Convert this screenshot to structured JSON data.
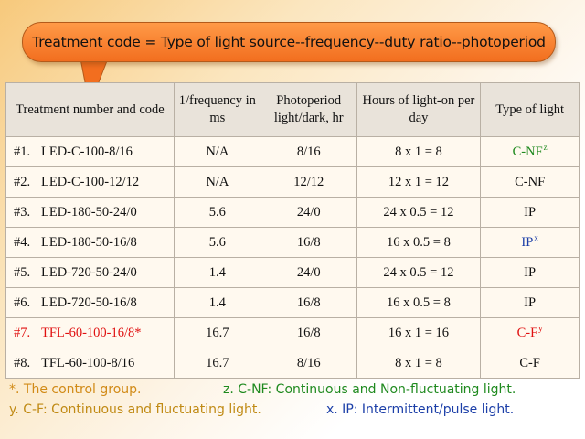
{
  "callout": {
    "text": "Treatment code = Type of light source--frequency--duty ratio--photoperiod"
  },
  "table": {
    "headers": [
      "Treatment number and code",
      "1/frequency in ms",
      "Photoperiod light/dark, hr",
      "Hours of light-on per day",
      "Type of light"
    ],
    "rows": [
      {
        "num": "#1.",
        "code": "LED-C-100-8/16",
        "freq": "N/A",
        "photo": "8/16",
        "hours": "8 x 1 = 8",
        "type": "C-NF",
        "sup": "z"
      },
      {
        "num": "#2.",
        "code": "LED-C-100-12/12",
        "freq": "N/A",
        "photo": "12/12",
        "hours": "12 x 1 = 12",
        "type": "C-NF",
        "sup": ""
      },
      {
        "num": "#3.",
        "code": "LED-180-50-24/0",
        "freq": "5.6",
        "photo": "24/0",
        "hours": "24 x 0.5 = 12",
        "type": "IP",
        "sup": ""
      },
      {
        "num": "#4.",
        "code": "LED-180-50-16/8",
        "freq": "5.6",
        "photo": "16/8",
        "hours": "16 x 0.5 = 8",
        "type": "IP",
        "sup": "x"
      },
      {
        "num": "#5.",
        "code": "LED-720-50-24/0",
        "freq": "1.4",
        "photo": "24/0",
        "hours": "24 x 0.5 = 12",
        "type": "IP",
        "sup": ""
      },
      {
        "num": "#6.",
        "code": "LED-720-50-16/8",
        "freq": "1.4",
        "photo": "16/8",
        "hours": "16 x 0.5 = 8",
        "type": "IP",
        "sup": ""
      },
      {
        "num": "#7.",
        "code": "TFL-60-100-16/8*",
        "freq": "16.7",
        "photo": "16/8",
        "hours": "16 x 1 = 16",
        "type": "C-F",
        "sup": "y"
      },
      {
        "num": "#8.",
        "code": "TFL-60-100-8/16",
        "freq": "16.7",
        "photo": "8/16",
        "hours": "8 x 1 = 8",
        "type": "C-F",
        "sup": ""
      }
    ]
  },
  "notes": {
    "control": "*. The control group.",
    "cnf": "z. C-NF: Continuous and Non-fluctuating light.",
    "cf": "y. C-F: Continuous and fluctuating light.",
    "ip": "x. IP: Intermittent/pulse light."
  },
  "colors": {
    "callout": "#f26e1f",
    "green": "#1f8a1f",
    "red": "#e01010",
    "blue": "#1c3fa8",
    "gold": "#d18a16"
  }
}
